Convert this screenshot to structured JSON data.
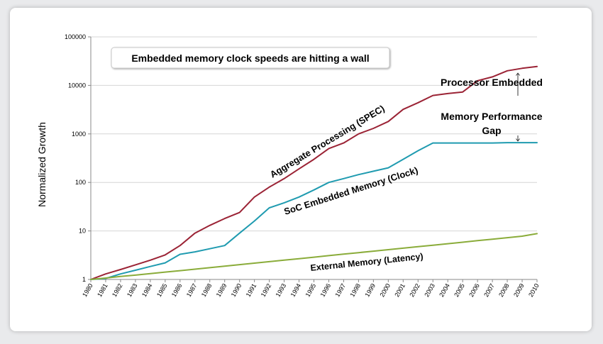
{
  "chart_data": {
    "type": "line",
    "title": "Embedded memory clock speeds are hitting a wall",
    "ylabel": "Normalized Growth",
    "xlabel": "",
    "yscale": "log",
    "ylim": [
      1,
      100000
    ],
    "yticks": [
      "1",
      "10",
      "100",
      "1000",
      "10000",
      "100000"
    ],
    "categories": [
      "1980",
      "1981",
      "1982",
      "1983",
      "1984",
      "1985",
      "1986",
      "1987",
      "1988",
      "1989",
      "1990",
      "1991",
      "1992",
      "1993",
      "1994",
      "1995",
      "1996",
      "1997",
      "1998",
      "1999",
      "2000",
      "2001",
      "2002",
      "2003",
      "2004",
      "2005",
      "2006",
      "2007",
      "2008",
      "2009",
      "2010"
    ],
    "series": [
      {
        "name": "Aggregate Processing (SPEC)",
        "color": "#9b2335",
        "values": [
          1,
          1.3,
          1.6,
          2.0,
          2.5,
          3.2,
          5,
          9,
          13,
          18,
          24,
          50,
          80,
          120,
          190,
          300,
          500,
          650,
          1000,
          1300,
          1800,
          3200,
          4400,
          6200,
          6800,
          7300,
          12500,
          15000,
          20000,
          22500,
          24500
        ]
      },
      {
        "name": "SoC Embedded Memory (Clock)",
        "color": "#1f9bb0",
        "values": [
          1,
          1.05,
          1.3,
          1.55,
          1.85,
          2.2,
          3.3,
          3.7,
          4.3,
          5,
          9,
          16,
          30,
          38,
          50,
          70,
          100,
          120,
          145,
          170,
          200,
          300,
          450,
          650,
          650,
          650,
          650,
          650,
          660,
          660,
          660
        ]
      },
      {
        "name": "External Memory (Latency)",
        "color": "#8aac3a",
        "values": [
          1,
          1.07,
          1.15,
          1.23,
          1.32,
          1.42,
          1.52,
          1.63,
          1.75,
          1.88,
          2.02,
          2.17,
          2.33,
          2.5,
          2.68,
          2.88,
          3.1,
          3.33,
          3.57,
          3.83,
          4.11,
          4.41,
          4.74,
          5.09,
          5.46,
          5.86,
          6.3,
          6.76,
          7.26,
          7.8,
          8.8
        ]
      }
    ],
    "annotations": {
      "gap_label": [
        "Processor Embedded",
        "Memory Performance",
        "Gap"
      ],
      "gap_between": [
        "2008",
        660,
        20000
      ]
    }
  }
}
